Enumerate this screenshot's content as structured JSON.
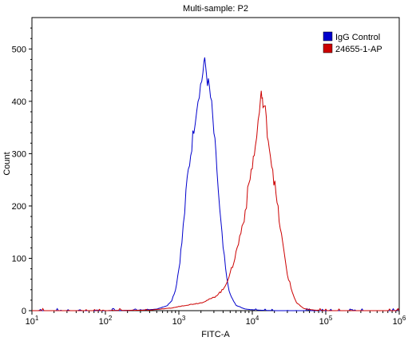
{
  "chart_data": {
    "type": "line",
    "title": "Multi-sample: P2",
    "xlabel": "FITC-A",
    "ylabel": "Count",
    "x_scale": "log",
    "xlim": [
      10,
      1000000
    ],
    "ylim": [
      0,
      560
    ],
    "x_ticks": [
      {
        "value": 10,
        "base": "10",
        "exp": "1"
      },
      {
        "value": 100,
        "base": "10",
        "exp": "2"
      },
      {
        "value": 1000,
        "base": "10",
        "exp": "3"
      },
      {
        "value": 10000,
        "base": "10",
        "exp": "4"
      },
      {
        "value": 100000,
        "base": "10",
        "exp": "5"
      },
      {
        "value": 1000000,
        "base": "10",
        "exp": "6"
      }
    ],
    "y_ticks": [
      0,
      100,
      200,
      300,
      400,
      500
    ],
    "legend_position": "top-right",
    "series": [
      {
        "name": "IgG Control",
        "color": "#0000cc",
        "points": [
          [
            10,
            0
          ],
          [
            100,
            0
          ],
          [
            300,
            1
          ],
          [
            500,
            3
          ],
          [
            700,
            10
          ],
          [
            800,
            20
          ],
          [
            900,
            40
          ],
          [
            1000,
            80
          ],
          [
            1100,
            130
          ],
          [
            1200,
            190
          ],
          [
            1300,
            250
          ],
          [
            1450,
            300
          ],
          [
            1600,
            350
          ],
          [
            1750,
            390
          ],
          [
            1900,
            420
          ],
          [
            2050,
            440
          ],
          [
            2200,
            475
          ],
          [
            2300,
            470
          ],
          [
            2450,
            440
          ],
          [
            2600,
            425
          ],
          [
            2800,
            390
          ],
          [
            3000,
            340
          ],
          [
            3300,
            270
          ],
          [
            3600,
            190
          ],
          [
            4000,
            120
          ],
          [
            4500,
            60
          ],
          [
            5000,
            30
          ],
          [
            6000,
            10
          ],
          [
            8000,
            3
          ],
          [
            12000,
            1
          ],
          [
            20000,
            0
          ],
          [
            1000000,
            0
          ]
        ]
      },
      {
        "name": "24655-1-AP",
        "color": "#cc0000",
        "points": [
          [
            10,
            0
          ],
          [
            100,
            0
          ],
          [
            400,
            1
          ],
          [
            800,
            5
          ],
          [
            1200,
            10
          ],
          [
            2000,
            15
          ],
          [
            3000,
            25
          ],
          [
            4000,
            40
          ],
          [
            5000,
            70
          ],
          [
            6000,
            110
          ],
          [
            7000,
            150
          ],
          [
            8000,
            190
          ],
          [
            9000,
            240
          ],
          [
            10000,
            280
          ],
          [
            11000,
            310
          ],
          [
            12000,
            360
          ],
          [
            13000,
            400
          ],
          [
            13500,
            420
          ],
          [
            14000,
            390
          ],
          [
            15000,
            380
          ],
          [
            16000,
            345
          ],
          [
            17000,
            315
          ],
          [
            19000,
            270
          ],
          [
            21000,
            220
          ],
          [
            24000,
            160
          ],
          [
            27000,
            110
          ],
          [
            30000,
            70
          ],
          [
            35000,
            35
          ],
          [
            40000,
            15
          ],
          [
            50000,
            4
          ],
          [
            70000,
            1
          ],
          [
            100000,
            0
          ],
          [
            1000000,
            0
          ]
        ]
      }
    ]
  }
}
